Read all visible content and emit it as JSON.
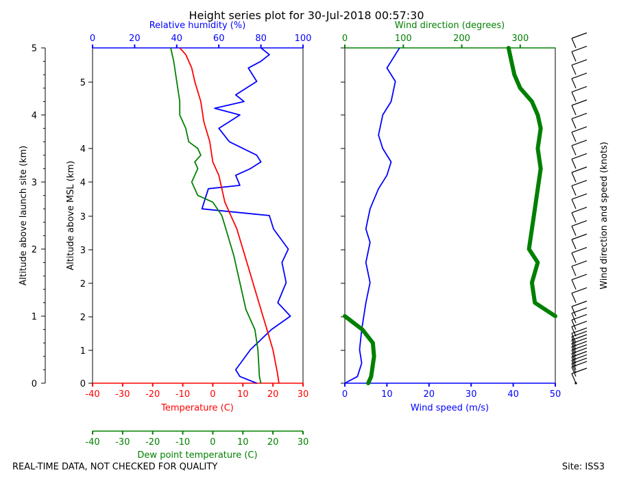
{
  "title": "Height series plot for 30-Jul-2018 00:57:30",
  "footer_left": "REAL-TIME DATA, NOT CHECKED FOR QUALITY",
  "footer_right": "Site: ISS3",
  "colors": {
    "temperature": "#ff0000",
    "dewpoint": "#008000",
    "humidity": "#0000ff",
    "wind_speed": "#0000ff",
    "wind_dir": "#008000",
    "barbs": "#000000"
  },
  "chart_data": [
    {
      "type": "line",
      "name": "thermodynamic-panel",
      "xaxes": {
        "temperature": {
          "label": "Temperature (C)",
          "range": [
            -40,
            30
          ],
          "ticks": [
            -40,
            -30,
            -20,
            -10,
            0,
            10,
            20,
            30
          ]
        },
        "dewpoint": {
          "label": "Dew point temperature (C)",
          "range": [
            -40,
            30
          ],
          "ticks": [
            -40,
            -30,
            -20,
            -10,
            0,
            10,
            20,
            30
          ]
        },
        "humidity": {
          "label": "Relative humidity (%)",
          "range": [
            0,
            100
          ],
          "ticks": [
            0,
            20,
            40,
            60,
            80,
            100
          ]
        }
      },
      "yaxes": {
        "launch": {
          "label": "Altitude above launch site (km)",
          "range": [
            0,
            5
          ],
          "ticks": [
            0,
            1,
            2,
            3,
            4,
            5
          ]
        },
        "msl": {
          "label": "Altitude above MSL (km)",
          "tick_labels": [
            "0",
            "1",
            "2",
            "2",
            "3",
            "3",
            "4",
            "4",
            "5"
          ]
        }
      },
      "series": [
        {
          "name": "Temperature",
          "x": [
            22,
            21.5,
            20,
            18,
            16,
            14,
            12,
            10,
            8,
            6,
            4,
            3,
            2,
            0,
            -1,
            -3,
            -4,
            -6,
            -7,
            -9,
            -11
          ],
          "y": [
            0,
            0.15,
            0.5,
            0.8,
            1.1,
            1.4,
            1.7,
            2.0,
            2.3,
            2.5,
            2.7,
            2.9,
            3.1,
            3.3,
            3.6,
            3.9,
            4.2,
            4.5,
            4.7,
            4.9,
            5.0
          ]
        },
        {
          "name": "Dew point",
          "x": [
            16,
            15.5,
            15,
            14,
            11,
            9,
            7,
            5,
            3,
            0,
            -5,
            -7,
            -5,
            -6,
            -4,
            -5,
            -8,
            -9,
            -11,
            -11,
            -12,
            -13,
            -14
          ],
          "y": [
            0,
            0.1,
            0.5,
            0.8,
            1.1,
            1.5,
            1.9,
            2.2,
            2.5,
            2.7,
            2.8,
            3.0,
            3.2,
            3.3,
            3.4,
            3.5,
            3.6,
            3.8,
            4.0,
            4.2,
            4.5,
            4.8,
            5.0
          ]
        },
        {
          "name": "Relative humidity",
          "x": [
            78,
            70,
            68,
            75,
            85,
            94,
            88,
            92,
            90,
            93,
            86,
            84,
            52,
            55,
            70,
            68,
            75,
            80,
            78,
            65,
            60,
            70,
            58,
            72,
            68,
            78,
            74,
            80,
            84,
            80
          ],
          "y": [
            0,
            0.1,
            0.2,
            0.5,
            0.8,
            1.0,
            1.2,
            1.5,
            1.8,
            2.0,
            2.3,
            2.5,
            2.6,
            2.9,
            2.95,
            3.1,
            3.2,
            3.3,
            3.4,
            3.6,
            3.8,
            4.0,
            4.1,
            4.2,
            4.3,
            4.5,
            4.7,
            4.8,
            4.9,
            5.0
          ]
        }
      ]
    },
    {
      "type": "line",
      "name": "wind-panel",
      "xaxes": {
        "speed": {
          "label": "Wind speed (m/s)",
          "range": [
            0,
            50
          ],
          "ticks": [
            0,
            10,
            20,
            30,
            40,
            50
          ]
        },
        "direction": {
          "label": "Wind direction (degrees)",
          "range": [
            0,
            360
          ],
          "ticks": [
            0,
            100,
            200,
            300
          ]
        }
      },
      "barb_label": "Wind direction and speed (knots)",
      "series": [
        {
          "name": "Wind speed",
          "x": [
            0,
            3,
            4,
            3.5,
            4,
            5,
            6,
            5,
            6,
            5,
            6,
            8,
            10,
            11,
            9,
            8,
            9,
            11,
            12,
            10,
            12,
            13
          ],
          "y": [
            0,
            0.1,
            0.3,
            0.5,
            0.8,
            1.2,
            1.5,
            1.8,
            2.1,
            2.3,
            2.6,
            2.9,
            3.1,
            3.3,
            3.5,
            3.7,
            4.0,
            4.2,
            4.5,
            4.7,
            4.9,
            5.0
          ]
        },
        {
          "name": "Wind direction",
          "x": [
            40,
            45,
            50,
            48,
            30,
            0,
            360,
            325,
            320,
            330,
            315,
            320,
            325,
            330,
            335,
            330,
            335,
            330,
            320,
            300,
            290,
            285,
            280
          ],
          "y": [
            0,
            0.1,
            0.4,
            0.6,
            0.8,
            1.0,
            1.0,
            1.2,
            1.5,
            1.8,
            2.0,
            2.3,
            2.6,
            2.9,
            3.2,
            3.5,
            3.8,
            4.0,
            4.2,
            4.4,
            4.6,
            4.8,
            5.0
          ]
        }
      ],
      "barbs_km": [
        0.0,
        0.1,
        0.15,
        0.2,
        0.25,
        0.3,
        0.35,
        0.4,
        0.45,
        0.5,
        0.55,
        0.6,
        0.7,
        0.8,
        0.9,
        1.0,
        1.2,
        1.4,
        1.6,
        1.8,
        2.0,
        2.2,
        2.4,
        2.6,
        2.8,
        3.0,
        3.2,
        3.4,
        3.6,
        3.8,
        4.0,
        4.2,
        4.4,
        4.6,
        4.8,
        5.0
      ]
    }
  ]
}
